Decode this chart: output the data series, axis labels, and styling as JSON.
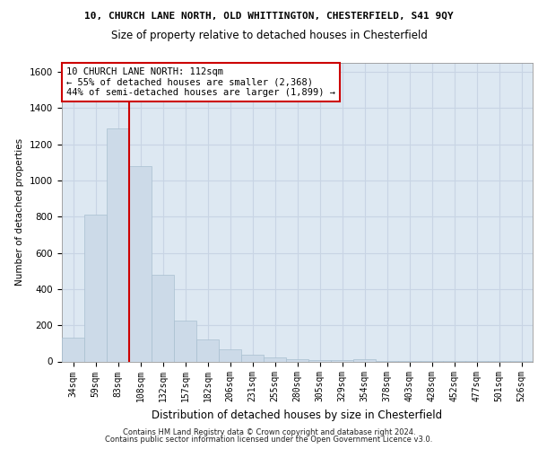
{
  "title_line1": "10, CHURCH LANE NORTH, OLD WHITTINGTON, CHESTERFIELD, S41 9QY",
  "title_line2": "Size of property relative to detached houses in Chesterfield",
  "xlabel": "Distribution of detached houses by size in Chesterfield",
  "ylabel": "Number of detached properties",
  "footer_line1": "Contains HM Land Registry data © Crown copyright and database right 2024.",
  "footer_line2": "Contains public sector information licensed under the Open Government Licence v3.0.",
  "bar_labels": [
    "34sqm",
    "59sqm",
    "83sqm",
    "108sqm",
    "132sqm",
    "157sqm",
    "182sqm",
    "206sqm",
    "231sqm",
    "255sqm",
    "280sqm",
    "305sqm",
    "329sqm",
    "354sqm",
    "378sqm",
    "403sqm",
    "428sqm",
    "452sqm",
    "477sqm",
    "501sqm",
    "526sqm"
  ],
  "bar_values": [
    130,
    810,
    1290,
    1080,
    480,
    225,
    120,
    65,
    35,
    22,
    12,
    8,
    5,
    12,
    3,
    3,
    3,
    3,
    3,
    3,
    3
  ],
  "bar_color": "#ccdae8",
  "bar_edge_color": "#a8bfd0",
  "vline_x_index": 3,
  "vline_color": "#cc0000",
  "annotation_text": "10 CHURCH LANE NORTH: 112sqm\n← 55% of detached houses are smaller (2,368)\n44% of semi-detached houses are larger (1,899) →",
  "annotation_box_color": "#ffffff",
  "annotation_box_edge": "#cc0000",
  "ylim": [
    0,
    1650
  ],
  "yticks": [
    0,
    200,
    400,
    600,
    800,
    1000,
    1200,
    1400,
    1600
  ],
  "grid_color": "#c8d4e4",
  "background_color": "#dde8f2"
}
